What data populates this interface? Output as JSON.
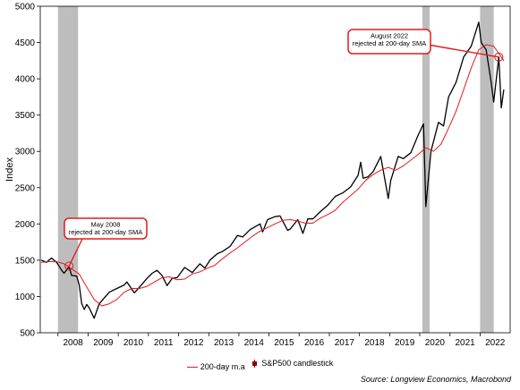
{
  "chart_data": {
    "type": "line",
    "title": "",
    "xlabel": "",
    "ylabel": "Index",
    "ylim": [
      500,
      5000
    ],
    "xlim": [
      "2007-06-01",
      "2022-12-31"
    ],
    "yticks": [
      500,
      1000,
      1500,
      2000,
      2500,
      3000,
      3500,
      4000,
      4500,
      5000
    ],
    "xtick_labels": [
      "2008",
      "2009",
      "2010",
      "2011",
      "2012",
      "2013",
      "2014",
      "2015",
      "2016",
      "2017",
      "2018",
      "2019",
      "2020",
      "2021",
      "2022"
    ],
    "grid": false,
    "legend_position": "bottom",
    "recession_bands": [
      [
        "2008-01-01",
        "2008-09-01"
      ],
      [
        "2020-02-01",
        "2020-04-30"
      ],
      [
        "2022-01-01",
        "2022-06-15"
      ]
    ],
    "series": [
      {
        "name": "S&P500 candlestick",
        "color": "#000000",
        "x": [
          "2007-06",
          "2007-08",
          "2007-10",
          "2007-12",
          "2008-02",
          "2008-03",
          "2008-05",
          "2008-06",
          "2008-08",
          "2008-09",
          "2008-10",
          "2008-11",
          "2008-12",
          "2009-01",
          "2009-03",
          "2009-05",
          "2009-07",
          "2009-09",
          "2009-12",
          "2010-03",
          "2010-04",
          "2010-07",
          "2010-09",
          "2010-12",
          "2011-02",
          "2011-04",
          "2011-06",
          "2011-08",
          "2011-10",
          "2011-12",
          "2012-03",
          "2012-06",
          "2012-09",
          "2012-11",
          "2013-01",
          "2013-04",
          "2013-06",
          "2013-09",
          "2013-12",
          "2014-02",
          "2014-05",
          "2014-09",
          "2014-10",
          "2014-12",
          "2015-03",
          "2015-05",
          "2015-08",
          "2015-09",
          "2015-12",
          "2016-02",
          "2016-04",
          "2016-06",
          "2016-09",
          "2016-12",
          "2017-03",
          "2017-06",
          "2017-09",
          "2017-12",
          "2018-01",
          "2018-02",
          "2018-04",
          "2018-06",
          "2018-09",
          "2018-12",
          "2019-01",
          "2019-04",
          "2019-06",
          "2019-09",
          "2019-12",
          "2020-02",
          "2020-03",
          "2020-05",
          "2020-08",
          "2020-10",
          "2020-12",
          "2021-03",
          "2021-06",
          "2021-09",
          "2021-12",
          "2022-01",
          "2022-03",
          "2022-05",
          "2022-06",
          "2022-08",
          "2022-09",
          "2022-10"
        ],
        "y": [
          1500,
          1470,
          1530,
          1470,
          1360,
          1320,
          1410,
          1290,
          1280,
          1160,
          900,
          820,
          890,
          840,
          700,
          900,
          980,
          1060,
          1110,
          1160,
          1200,
          1050,
          1130,
          1250,
          1320,
          1360,
          1290,
          1150,
          1250,
          1260,
          1400,
          1330,
          1450,
          1390,
          1500,
          1590,
          1620,
          1690,
          1840,
          1820,
          1920,
          2000,
          1890,
          2060,
          2100,
          2110,
          1910,
          1930,
          2060,
          1870,
          2070,
          2070,
          2170,
          2260,
          2380,
          2430,
          2510,
          2670,
          2850,
          2630,
          2650,
          2720,
          2930,
          2350,
          2600,
          2930,
          2900,
          2980,
          3230,
          3380,
          2240,
          3000,
          3400,
          3350,
          3750,
          3950,
          4300,
          4450,
          4780,
          4500,
          4400,
          3950,
          3680,
          4300,
          3600,
          3850
        ]
      },
      {
        "name": "200-day m.a",
        "color": "#e41a1c",
        "x": [
          "2007-06",
          "2007-09",
          "2007-12",
          "2008-03",
          "2008-06",
          "2008-09",
          "2008-12",
          "2009-03",
          "2009-06",
          "2009-09",
          "2009-12",
          "2010-03",
          "2010-06",
          "2010-09",
          "2010-12",
          "2011-03",
          "2011-06",
          "2011-09",
          "2011-12",
          "2012-03",
          "2012-06",
          "2012-09",
          "2012-12",
          "2013-03",
          "2013-06",
          "2013-09",
          "2013-12",
          "2014-03",
          "2014-06",
          "2014-09",
          "2014-12",
          "2015-03",
          "2015-06",
          "2015-09",
          "2015-12",
          "2016-03",
          "2016-06",
          "2016-09",
          "2016-12",
          "2017-03",
          "2017-06",
          "2017-09",
          "2017-12",
          "2018-03",
          "2018-06",
          "2018-09",
          "2018-12",
          "2019-03",
          "2019-06",
          "2019-09",
          "2019-12",
          "2020-03",
          "2020-06",
          "2020-09",
          "2020-12",
          "2021-03",
          "2021-06",
          "2021-09",
          "2021-12",
          "2022-03",
          "2022-06",
          "2022-09",
          "2022-10"
        ],
        "y": [
          1470,
          1480,
          1480,
          1450,
          1380,
          1310,
          1130,
          960,
          870,
          900,
          960,
          1060,
          1110,
          1110,
          1140,
          1200,
          1260,
          1270,
          1230,
          1240,
          1310,
          1340,
          1390,
          1430,
          1520,
          1600,
          1670,
          1750,
          1830,
          1900,
          1950,
          2000,
          2050,
          2060,
          2040,
          2010,
          2010,
          2080,
          2130,
          2190,
          2300,
          2390,
          2480,
          2600,
          2680,
          2740,
          2780,
          2740,
          2800,
          2880,
          2960,
          3050,
          3000,
          3100,
          3320,
          3550,
          3850,
          4150,
          4400,
          4470,
          4450,
          4300,
          4250
        ]
      }
    ],
    "annotations": [
      {
        "text": [
          "May 2008",
          "rejected at 200-day SMA"
        ],
        "date": "2008-05",
        "value": 1420
      },
      {
        "text": [
          "August 2022",
          "rejected at 200-day SMA"
        ],
        "date": "2022-08",
        "value": 4300
      }
    ]
  },
  "legend": {
    "ma_label": "200-day m.a",
    "candle_label": "S&P500 candlestick"
  },
  "source": "Source: Longview Economics, Macrobond"
}
